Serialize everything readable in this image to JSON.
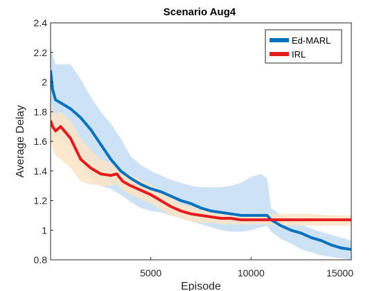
{
  "chart_data": {
    "type": "line",
    "title": "Scenario Aug4",
    "xlabel": "Episode",
    "ylabel": "Average Delay",
    "xlim": [
      0,
      15000
    ],
    "ylim": [
      0.8,
      2.4
    ],
    "xticks": [
      5000,
      10000,
      15000
    ],
    "xtick_labels": [
      "5000",
      "10000",
      "15000"
    ],
    "yticks": [
      0.8,
      1.0,
      1.2,
      1.4,
      1.6,
      1.8,
      2.0,
      2.2,
      2.4
    ],
    "ytick_labels": [
      "0.8",
      "1",
      "1.2",
      "1.4",
      "1.6",
      "1.8",
      "2",
      "2.2",
      "2.4"
    ],
    "grid": false,
    "legend_position": "top-right",
    "series": [
      {
        "name": "Ed-MARL",
        "color": "#0072BD",
        "band_color": "#C6DDF5",
        "x": [
          0,
          100,
          250,
          500,
          1000,
          1500,
          2000,
          2500,
          3000,
          3500,
          4000,
          4500,
          5000,
          5500,
          6000,
          6500,
          7000,
          7500,
          8000,
          8500,
          9000,
          9500,
          10000,
          10500,
          10800,
          11000,
          11500,
          12000,
          12500,
          13000,
          13500,
          14000,
          14500,
          15000
        ],
        "mean": [
          2.08,
          1.95,
          1.88,
          1.86,
          1.82,
          1.76,
          1.68,
          1.58,
          1.48,
          1.4,
          1.35,
          1.31,
          1.28,
          1.26,
          1.23,
          1.2,
          1.18,
          1.15,
          1.13,
          1.12,
          1.11,
          1.1,
          1.1,
          1.1,
          1.1,
          1.07,
          1.03,
          1.0,
          0.98,
          0.95,
          0.93,
          0.9,
          0.88,
          0.87
        ],
        "upper": [
          2.25,
          2.18,
          2.12,
          2.12,
          2.12,
          2.02,
          1.9,
          1.8,
          1.72,
          1.62,
          1.5,
          1.44,
          1.4,
          1.37,
          1.34,
          1.32,
          1.3,
          1.29,
          1.29,
          1.29,
          1.3,
          1.32,
          1.36,
          1.38,
          1.35,
          1.15,
          1.1,
          1.06,
          1.04,
          1.01,
          0.99,
          0.97,
          0.95,
          0.93
        ],
        "lower": [
          1.7,
          1.68,
          1.64,
          1.62,
          1.56,
          1.46,
          1.36,
          1.3,
          1.28,
          1.24,
          1.19,
          1.15,
          1.13,
          1.12,
          1.1,
          1.08,
          1.06,
          1.04,
          1.02,
          1.0,
          0.99,
          0.99,
          1.0,
          1.02,
          1.03,
          0.99,
          0.94,
          0.91,
          0.87,
          0.85,
          0.83,
          0.82,
          0.81,
          0.8
        ]
      },
      {
        "name": "IRL",
        "color": "#E41A1C",
        "band_color": "#FCE4C6",
        "x": [
          0,
          100,
          250,
          500,
          1000,
          1500,
          2000,
          2500,
          3000,
          3300,
          3600,
          4000,
          4500,
          5000,
          5500,
          6000,
          6500,
          7000,
          7500,
          8000,
          8500,
          9000,
          9500,
          10000,
          10500,
          11000,
          12000,
          13000,
          14000,
          15000
        ],
        "mean": [
          1.74,
          1.7,
          1.67,
          1.7,
          1.62,
          1.48,
          1.42,
          1.38,
          1.37,
          1.38,
          1.33,
          1.3,
          1.27,
          1.24,
          1.2,
          1.16,
          1.13,
          1.11,
          1.1,
          1.09,
          1.08,
          1.08,
          1.07,
          1.07,
          1.07,
          1.07,
          1.07,
          1.07,
          1.07,
          1.07
        ],
        "upper": [
          1.86,
          1.82,
          1.78,
          1.8,
          1.74,
          1.62,
          1.54,
          1.48,
          1.45,
          1.44,
          1.4,
          1.37,
          1.34,
          1.31,
          1.26,
          1.22,
          1.18,
          1.16,
          1.14,
          1.13,
          1.12,
          1.11,
          1.11,
          1.11,
          1.11,
          1.11,
          1.11,
          1.11,
          1.1,
          1.1
        ],
        "lower": [
          1.6,
          1.56,
          1.5,
          1.48,
          1.42,
          1.33,
          1.31,
          1.3,
          1.3,
          1.31,
          1.27,
          1.24,
          1.21,
          1.18,
          1.14,
          1.1,
          1.08,
          1.06,
          1.05,
          1.05,
          1.04,
          1.04,
          1.04,
          1.04,
          1.04,
          1.04,
          1.03,
          1.03,
          1.03,
          1.03
        ]
      }
    ]
  }
}
